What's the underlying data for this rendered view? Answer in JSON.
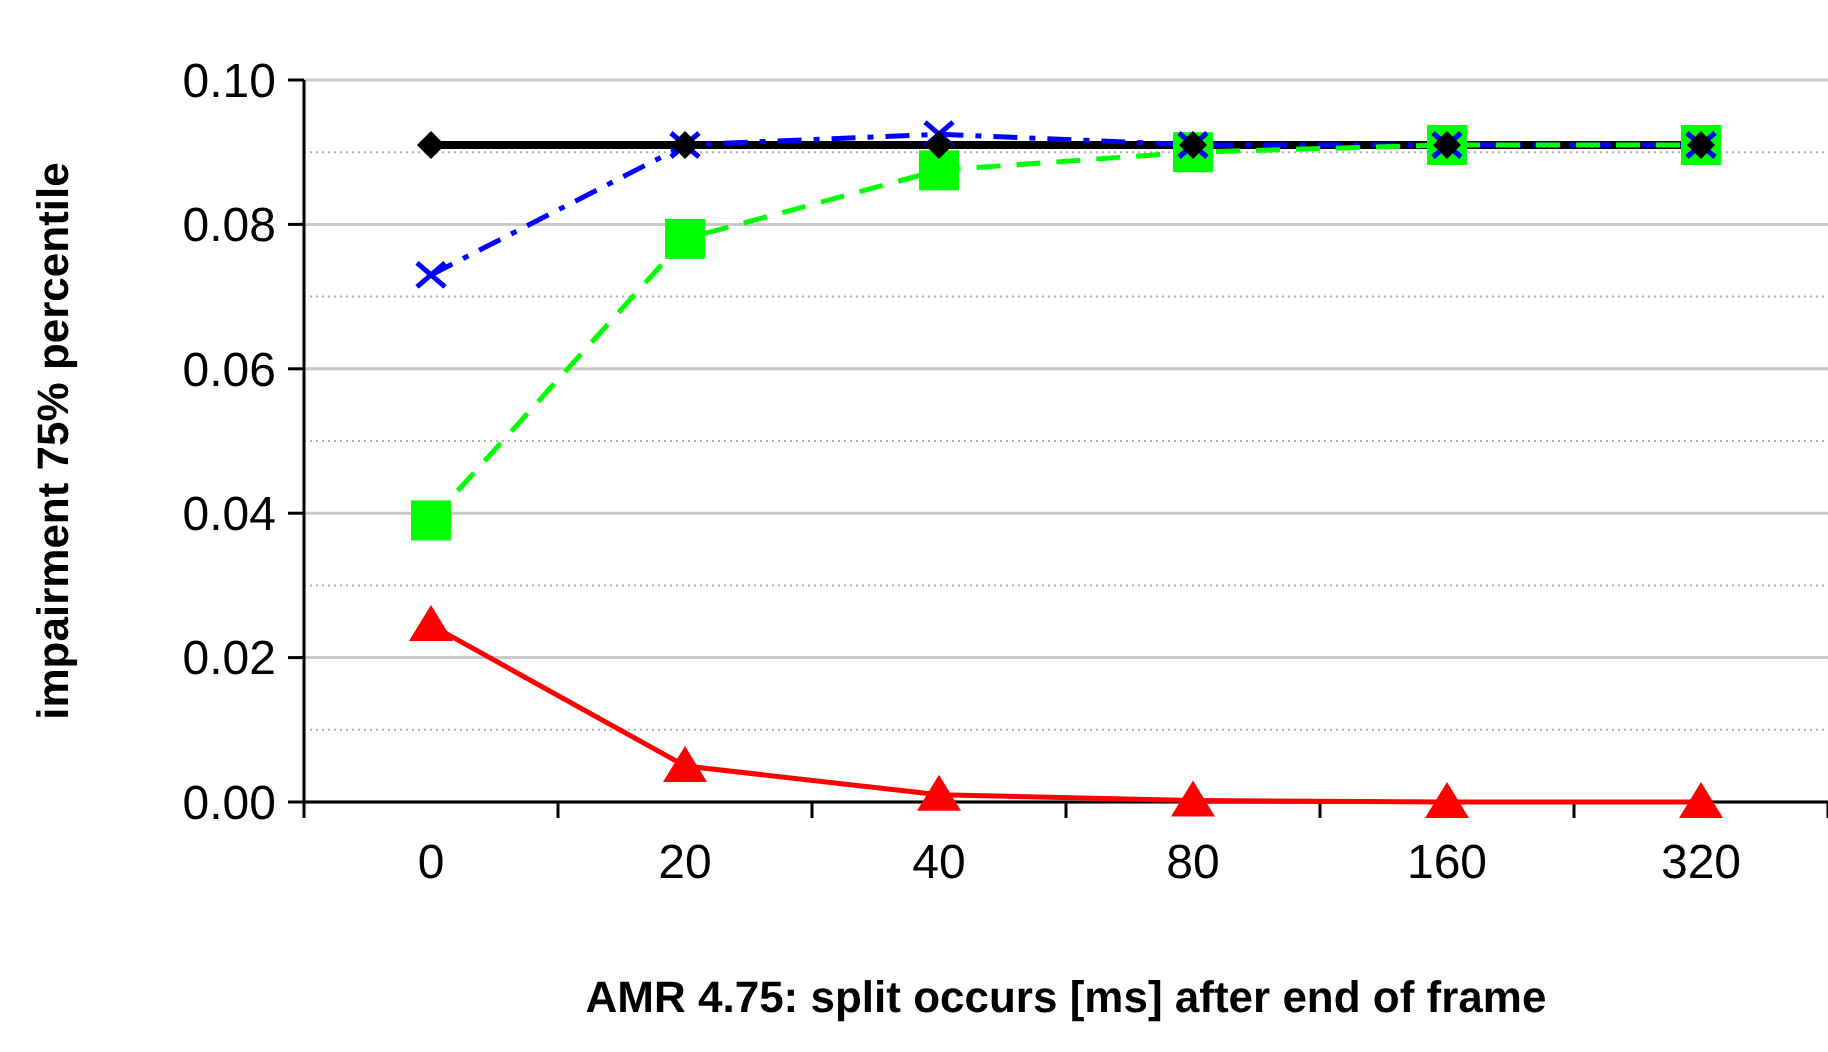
{
  "chart_data": {
    "type": "line",
    "xlabel": "AMR 4.75: split occurs [ms] after end of frame",
    "ylabel": "impairment 75% percentile",
    "categories": [
      "0",
      "20",
      "40",
      "80",
      "160",
      "320"
    ],
    "ylim": [
      0,
      0.1
    ],
    "yticks": [
      {
        "value": 0,
        "label": "0.00"
      },
      {
        "value": 0.01,
        "label": null
      },
      {
        "value": 0.02,
        "label": "0.02"
      },
      {
        "value": 0.03,
        "label": null
      },
      {
        "value": 0.04,
        "label": "0.04"
      },
      {
        "value": 0.05,
        "label": null
      },
      {
        "value": 0.06,
        "label": "0.06"
      },
      {
        "value": 0.07,
        "label": null
      },
      {
        "value": 0.08,
        "label": "0.08"
      },
      {
        "value": 0.09,
        "label": null
      },
      {
        "value": 0.1,
        "label": "0.10"
      }
    ],
    "grid": "y",
    "series": [
      {
        "color": "#000000",
        "marker": "diamond",
        "line_style": "solid",
        "values": [
          0.091,
          0.091,
          0.091,
          0.091,
          0.091,
          0.091
        ]
      },
      {
        "color": "#0000ff",
        "marker": "cross",
        "line_style": "dashdot",
        "values": [
          0.073,
          0.091,
          0.0925,
          0.091,
          0.091,
          0.091
        ]
      },
      {
        "color": "#00ff00",
        "marker": "square",
        "line_style": "dashed",
        "values": [
          0.039,
          0.078,
          0.0875,
          0.09,
          0.091,
          0.091
        ]
      },
      {
        "color": "#ff0000",
        "marker": "triangle",
        "line_style": "solid",
        "values": [
          0.0245,
          0.005,
          0.001,
          0.0002,
          0,
          0
        ]
      }
    ]
  }
}
